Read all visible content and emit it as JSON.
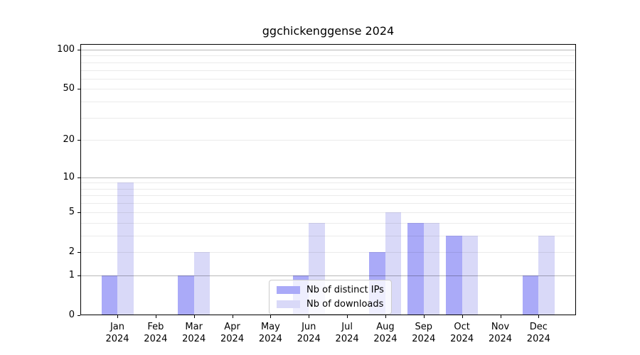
{
  "chart_data": {
    "type": "bar",
    "title": "ggchickenggense 2024",
    "categories": [
      "Jan",
      "Feb",
      "Mar",
      "Apr",
      "May",
      "Jun",
      "Jul",
      "Aug",
      "Sep",
      "Oct",
      "Nov",
      "Dec"
    ],
    "series": [
      {
        "name": "Nb of distinct IPs",
        "color": "#aaaaf8",
        "values": [
          1,
          0,
          1,
          0,
          0,
          1,
          0,
          2,
          4,
          3,
          0,
          1
        ]
      },
      {
        "name": "Nb of downloads",
        "color": "#d9d9f8",
        "values": [
          9,
          0,
          2,
          0,
          0,
          4,
          0,
          5,
          4,
          3,
          0,
          3
        ]
      }
    ],
    "y_axis": {
      "scale": "log1p",
      "ylim": [
        0,
        100
      ],
      "tick_values": [
        0,
        1,
        2,
        5,
        10,
        20,
        50,
        100
      ],
      "major_gridlines": [
        1,
        10,
        100
      ],
      "minor_gridlines": [
        2,
        3,
        4,
        5,
        6,
        7,
        8,
        9,
        20,
        30,
        40,
        50,
        60,
        70,
        80,
        90
      ]
    },
    "x_axis": {
      "tick_labels_line2": "2024"
    },
    "legend": {
      "entries": [
        "Nb of distinct IPs",
        "Nb of downloads"
      ],
      "position": "lower center"
    },
    "grid": true,
    "colors": {
      "background": "#ffffff",
      "text": "#000000",
      "spine": "#000000",
      "major_grid": "rgba(0,0,0,0.28)",
      "minor_grid": "rgba(0,0,0,0.08)"
    }
  }
}
